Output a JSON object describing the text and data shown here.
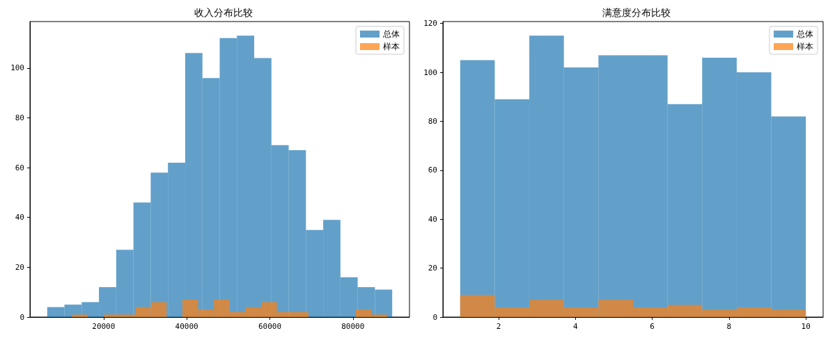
{
  "chart_data": [
    {
      "type": "histogram",
      "title": "收入分布比较",
      "legend": "top right",
      "grid": false,
      "xlim": [
        2263,
        93616
      ],
      "xticks": [
        20000,
        40000,
        60000,
        80000
      ],
      "ylim": [
        0,
        118.65
      ],
      "yticks": [
        0,
        20,
        40,
        60,
        80,
        100
      ],
      "bins": [
        6415,
        10567,
        14719,
        18871,
        23023,
        27175,
        31327,
        35479,
        39631,
        43783,
        47935,
        52087,
        56239,
        60391,
        64543,
        68695,
        72847,
        76999,
        81151,
        85303,
        89455
      ],
      "series": [
        {
          "name": "总体",
          "color": "#1f77b4",
          "values": [
            4,
            5,
            6,
            12,
            27,
            46,
            58,
            62,
            106,
            96,
            112,
            113,
            104,
            69,
            67,
            35,
            39,
            16,
            12,
            11
          ]
        },
        {
          "name": "样本",
          "color": "#ff7f0e",
          "bins": [
            12412,
            16204,
            19997,
            23789,
            27581,
            31374,
            35166,
            38958,
            42750,
            46543,
            50335,
            54127,
            57920,
            61712,
            65504,
            69297,
            73089,
            76881,
            80673,
            84466,
            88258
          ],
          "values": [
            1,
            0,
            1,
            1,
            4,
            6,
            0,
            7,
            3,
            7,
            2,
            4,
            6,
            2,
            2,
            0,
            0,
            0,
            3,
            1
          ]
        }
      ]
    },
    {
      "type": "histogram",
      "title": "满意度分布比较",
      "legend": "top right",
      "grid": false,
      "xlim": [
        0.55,
        10.45
      ],
      "xticks": [
        2,
        4,
        6,
        8,
        10
      ],
      "ylim": [
        0,
        120.75
      ],
      "yticks": [
        0,
        20,
        40,
        60,
        80,
        100,
        120
      ],
      "bins": [
        1,
        1.9,
        2.8,
        3.7,
        4.6,
        5.5,
        6.4,
        7.3,
        8.2,
        9.1,
        10
      ],
      "series": [
        {
          "name": "总体",
          "color": "#1f77b4",
          "values": [
            105,
            89,
            115,
            102,
            107,
            107,
            87,
            106,
            100,
            82
          ]
        },
        {
          "name": "样本",
          "color": "#ff7f0e",
          "values": [
            9,
            4,
            7,
            4,
            7,
            4,
            5,
            3,
            4,
            3
          ]
        }
      ]
    }
  ]
}
